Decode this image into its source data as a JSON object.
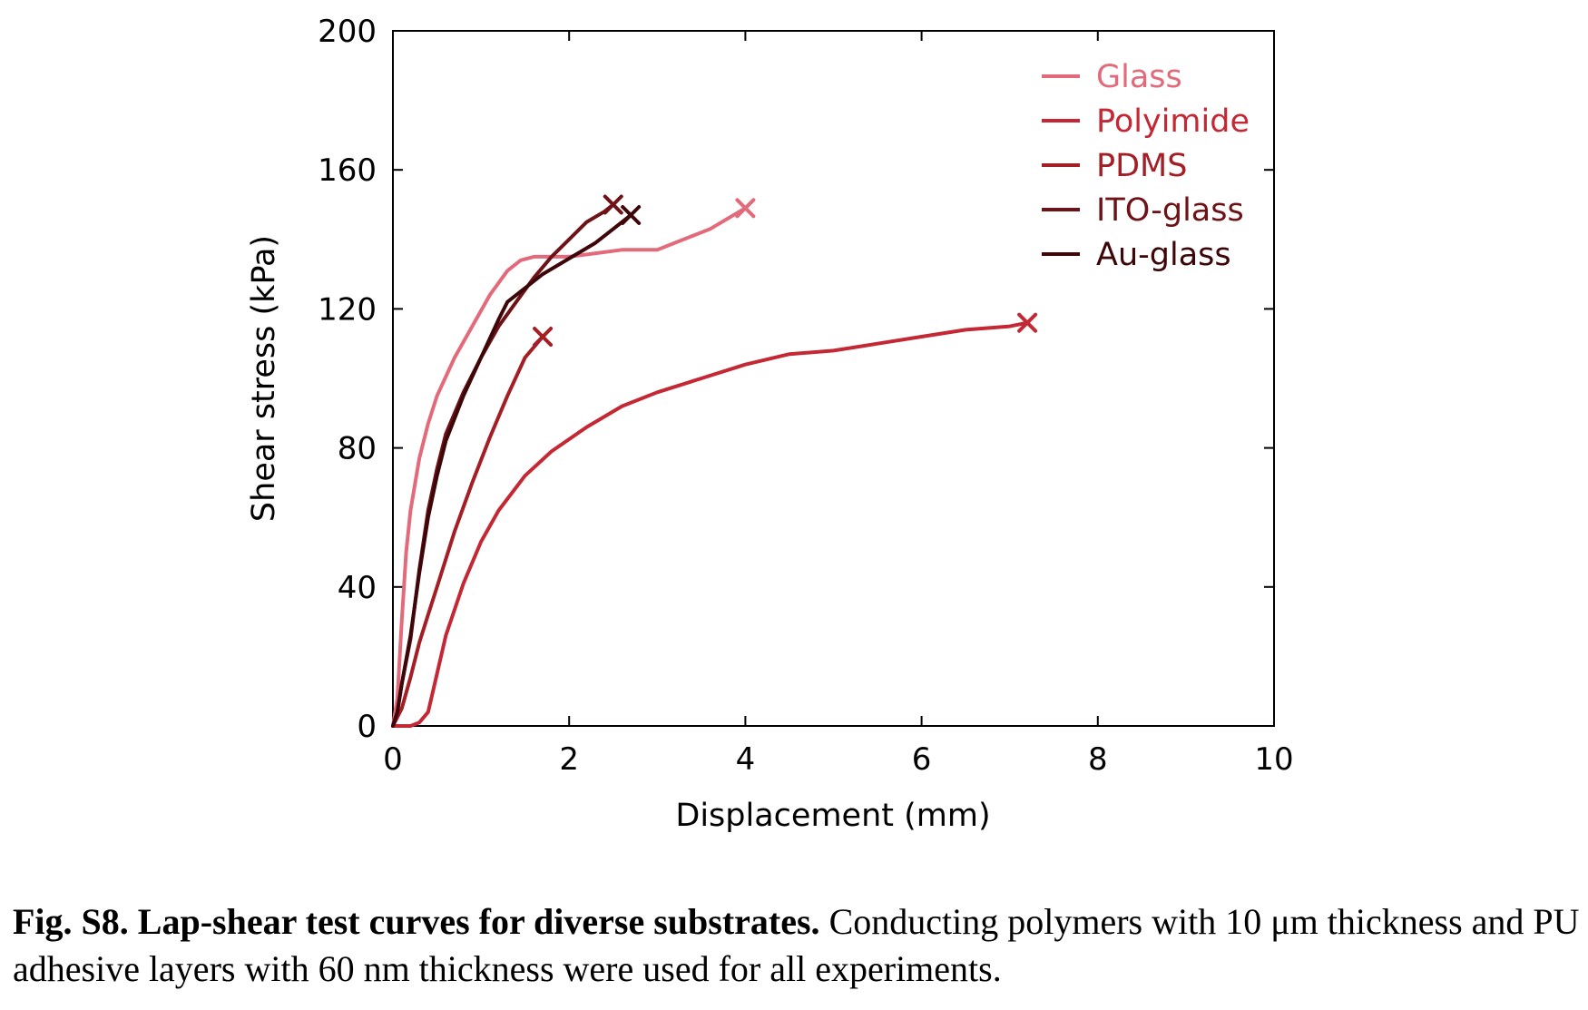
{
  "chart_data": {
    "type": "line",
    "xlabel": "Displacement (mm)",
    "ylabel": "Shear stress (kPa)",
    "xlim": [
      0,
      10
    ],
    "ylim": [
      0,
      200
    ],
    "xticks": [
      0,
      2,
      4,
      6,
      8,
      10
    ],
    "yticks": [
      0,
      40,
      80,
      120,
      160,
      200
    ],
    "grid": false,
    "legend_position": "top-right",
    "series": [
      {
        "name": "Glass",
        "color": "#e26a7a",
        "end_marker": "x",
        "points": [
          [
            0,
            0
          ],
          [
            0.05,
            8
          ],
          [
            0.1,
            30
          ],
          [
            0.15,
            50
          ],
          [
            0.2,
            62
          ],
          [
            0.3,
            77
          ],
          [
            0.4,
            87
          ],
          [
            0.5,
            95
          ],
          [
            0.7,
            106
          ],
          [
            0.9,
            115
          ],
          [
            1.1,
            124
          ],
          [
            1.3,
            131
          ],
          [
            1.45,
            134
          ],
          [
            1.6,
            135
          ],
          [
            1.8,
            135
          ],
          [
            2.0,
            135
          ],
          [
            2.3,
            136
          ],
          [
            2.6,
            137
          ],
          [
            2.8,
            137
          ],
          [
            3.0,
            137
          ],
          [
            3.2,
            139
          ],
          [
            3.4,
            141
          ],
          [
            3.6,
            143
          ],
          [
            3.8,
            146
          ],
          [
            4.0,
            149
          ]
        ]
      },
      {
        "name": "Polyimide",
        "color": "#c42834",
        "end_marker": "x",
        "points": [
          [
            0,
            0
          ],
          [
            0.2,
            0
          ],
          [
            0.3,
            1
          ],
          [
            0.4,
            4
          ],
          [
            0.5,
            15
          ],
          [
            0.6,
            26
          ],
          [
            0.8,
            41
          ],
          [
            1.0,
            53
          ],
          [
            1.2,
            62
          ],
          [
            1.5,
            72
          ],
          [
            1.8,
            79
          ],
          [
            2.2,
            86
          ],
          [
            2.6,
            92
          ],
          [
            3.0,
            96
          ],
          [
            3.5,
            100
          ],
          [
            4.0,
            104
          ],
          [
            4.5,
            107
          ],
          [
            5.0,
            108
          ],
          [
            5.5,
            110
          ],
          [
            6.0,
            112
          ],
          [
            6.5,
            114
          ],
          [
            7.0,
            115
          ],
          [
            7.2,
            116
          ]
        ]
      },
      {
        "name": "PDMS",
        "color": "#a41e26",
        "end_marker": "x",
        "points": [
          [
            0,
            0
          ],
          [
            0.1,
            5
          ],
          [
            0.2,
            14
          ],
          [
            0.3,
            24
          ],
          [
            0.4,
            32
          ],
          [
            0.5,
            40
          ],
          [
            0.7,
            56
          ],
          [
            0.9,
            70
          ],
          [
            1.1,
            83
          ],
          [
            1.3,
            95
          ],
          [
            1.5,
            106
          ],
          [
            1.7,
            112
          ]
        ]
      },
      {
        "name": "ITO-glass",
        "color": "#6e1218",
        "end_marker": "x",
        "points": [
          [
            0,
            0
          ],
          [
            0.05,
            4
          ],
          [
            0.1,
            12
          ],
          [
            0.2,
            25
          ],
          [
            0.3,
            45
          ],
          [
            0.4,
            62
          ],
          [
            0.5,
            74
          ],
          [
            0.6,
            84
          ],
          [
            0.8,
            96
          ],
          [
            1.0,
            106
          ],
          [
            1.2,
            115
          ],
          [
            1.4,
            122
          ],
          [
            1.6,
            129
          ],
          [
            1.8,
            135
          ],
          [
            2.0,
            140
          ],
          [
            2.2,
            145
          ],
          [
            2.4,
            148
          ],
          [
            2.5,
            150
          ]
        ]
      },
      {
        "name": "Au-glass",
        "color": "#3d0709",
        "end_marker": "x",
        "points": [
          [
            0,
            0
          ],
          [
            0.05,
            4
          ],
          [
            0.1,
            12
          ],
          [
            0.2,
            26
          ],
          [
            0.3,
            44
          ],
          [
            0.4,
            60
          ],
          [
            0.5,
            72
          ],
          [
            0.6,
            82
          ],
          [
            0.8,
            95
          ],
          [
            1.0,
            106
          ],
          [
            1.2,
            117
          ],
          [
            1.3,
            122
          ],
          [
            1.5,
            126
          ],
          [
            1.7,
            130
          ],
          [
            1.9,
            133
          ],
          [
            2.1,
            136
          ],
          [
            2.3,
            139
          ],
          [
            2.5,
            143
          ],
          [
            2.7,
            147
          ]
        ]
      }
    ]
  },
  "caption": {
    "bold": "Fig. S8. Lap-shear test curves for diverse substrates.",
    "text": " Conducting polymers with 10 μm thickness and PU adhesive layers with 60 nm thickness were used for all experiments."
  }
}
